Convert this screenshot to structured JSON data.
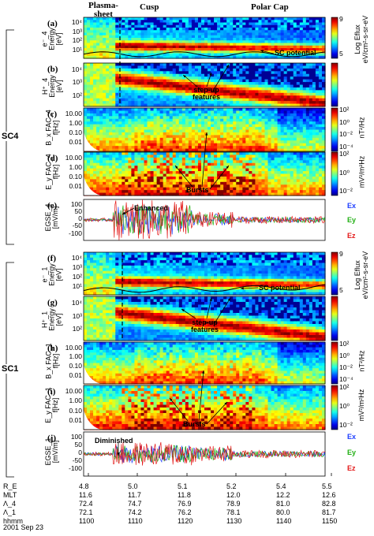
{
  "region_labels": {
    "plasmasheet": "Plasma-\nsheet",
    "cusp": "Cusp",
    "polarcap": "Polar Cap"
  },
  "spacecraft": [
    "SC4",
    "SC1"
  ],
  "panels": [
    {
      "letter": "(a)",
      "ylabel": "e⁻_4\nEnergy\n[eV]",
      "type": "electron",
      "yticks": [
        "10⁴",
        "10³",
        "10²",
        "10¹"
      ],
      "cb_label": "Log Eflux\neV/cm²-s-sr-eV",
      "cb_ticks": [
        "9",
        "5"
      ]
    },
    {
      "letter": "(b)",
      "ylabel": "H⁺_4\nEnergy\n[eV]",
      "type": "ion",
      "yticks": [
        "10⁴",
        "10³",
        "10²"
      ],
      "cb_label": "",
      "cb_ticks": []
    },
    {
      "letter": "(c)",
      "ylabel": "B_x FAC_4\nf[Hz]",
      "type": "bwave",
      "yticks": [
        "10.00",
        "1.00",
        "0.10",
        "0.01"
      ],
      "cb_label": "nT²/Hz",
      "cb_ticks": [
        "10²",
        "10⁰",
        "10⁻²",
        "10⁻⁴"
      ]
    },
    {
      "letter": "(d)",
      "ylabel": "E_y FAC_4\nf[Hz]",
      "type": "ewave",
      "yticks": [
        "10.00",
        "1.00",
        "0.10",
        "0.01"
      ],
      "cb_label": "mV²/m²Hz",
      "cb_ticks": [
        "10²",
        "10⁰",
        "10⁻²"
      ]
    },
    {
      "letter": "(e)",
      "ylabel": "EGSE_4\n[mV/m]",
      "type": "efield",
      "yticks": [
        "100",
        "50",
        "0",
        "-50",
        "-100"
      ],
      "cb_label": "",
      "cb_ticks": []
    },
    {
      "letter": "(f)",
      "ylabel": "e⁻_1\nEnergy\n[eV]",
      "type": "electron",
      "yticks": [
        "10⁴",
        "10³",
        "10²",
        "10¹"
      ],
      "cb_label": "Log Eflux\neV/cm²-s-sr-eV",
      "cb_ticks": [
        "9",
        "5"
      ]
    },
    {
      "letter": "(g)",
      "ylabel": "H⁺_1\nEnergy\n[eV]",
      "type": "ion",
      "yticks": [
        "10⁴",
        "10³",
        "10²"
      ],
      "cb_label": "",
      "cb_ticks": []
    },
    {
      "letter": "(h)",
      "ylabel": "B_x FAC_1\nf[Hz]",
      "type": "bwave",
      "yticks": [
        "10.00",
        "1.00",
        "0.10",
        "0.01"
      ],
      "cb_label": "nT²/Hz",
      "cb_ticks": [
        "10²",
        "10⁰",
        "10⁻²",
        "10⁻⁴"
      ]
    },
    {
      "letter": "(i)",
      "ylabel": "E_y FAC_1\nf[Hz]",
      "type": "ewave",
      "yticks": [
        "10.00",
        "1.00",
        "0.10",
        "0.01"
      ],
      "cb_label": "mV²/m²Hz",
      "cb_ticks": [
        "10²",
        "10⁰",
        "10⁻²"
      ]
    },
    {
      "letter": "(j)",
      "ylabel": "EGSE_1\n[mV/m]",
      "type": "efield",
      "yticks": [
        "100",
        "50",
        "0",
        "-50",
        "-100"
      ],
      "cb_label": "",
      "cb_ticks": []
    }
  ],
  "annotations": {
    "sc_potential": "SC potential",
    "stepup": "step-up\nfeatures",
    "bursts": "Bursts",
    "enhanced": "Enhanced",
    "diminished": "Diminished"
  },
  "components": [
    {
      "name": "Ex",
      "color": "#1f3fff"
    },
    {
      "name": "Ey",
      "color": "#22b014"
    },
    {
      "name": "Ez",
      "color": "#e41a1a"
    }
  ],
  "ephemeris": {
    "rows": [
      {
        "label": "R_E",
        "values": [
          "4.8",
          "5.0",
          "5.1",
          "5.2",
          "5.4",
          "5.5"
        ]
      },
      {
        "label": "MLT",
        "values": [
          "11.6",
          "11.7",
          "11.8",
          "12.0",
          "12.2",
          "12.6"
        ]
      },
      {
        "label": "Λ_4",
        "values": [
          "72.4",
          "74.7",
          "76.9",
          "78.9",
          "81.0",
          "82.8"
        ]
      },
      {
        "label": "Λ_1",
        "values": [
          "72.1",
          "74.2",
          "76.2",
          "78.1",
          "80.0",
          "81.7"
        ]
      },
      {
        "label": "hhmm",
        "values": [
          "1100",
          "1110",
          "1120",
          "1130",
          "1140",
          "1150"
        ]
      }
    ],
    "date": "2001 Sep 23"
  }
}
